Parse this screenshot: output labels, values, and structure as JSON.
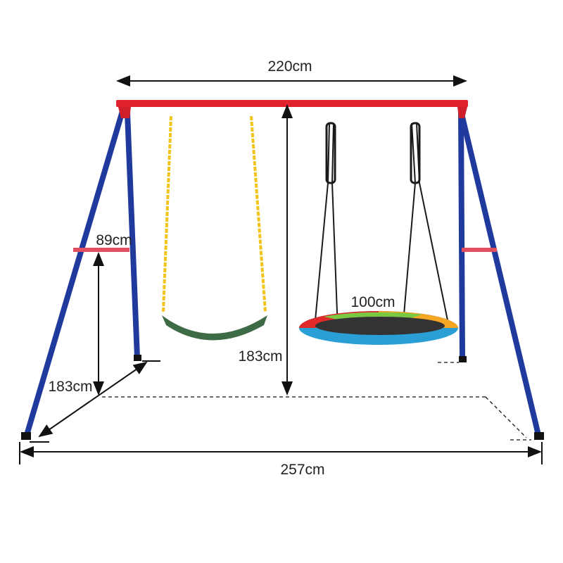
{
  "dimensions": {
    "top_bar_width": "220cm",
    "frame_height": "183cm",
    "crossbar_height": "89cm",
    "frame_depth": "183cm",
    "base_width": "257cm",
    "saucer_diameter": "100cm"
  },
  "colors": {
    "top_bar": "#e0222e",
    "legs": "#1f3a9c",
    "chain": "#f2c318",
    "seat": "#3d6b45",
    "rope": "#1a1a1a"
  }
}
